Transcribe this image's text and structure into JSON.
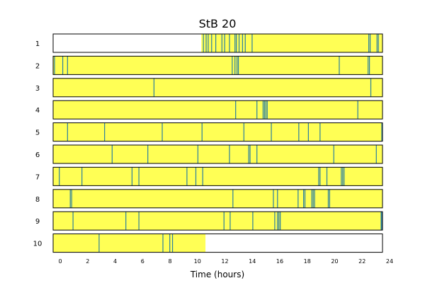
{
  "chart_data": {
    "type": "raster",
    "title": "StB 20",
    "xlabel": "Time (hours)",
    "xlim": [
      0,
      24
    ],
    "x_ticks": [
      0,
      2,
      4,
      6,
      8,
      10,
      12,
      14,
      16,
      18,
      20,
      22,
      24
    ],
    "colors": {
      "fill": "#ffff55",
      "event": "#2a7fa0",
      "frame": "#000000"
    },
    "rows": [
      {
        "label": "1",
        "active": [
          10.8,
          24
        ],
        "events": [
          10.95,
          11.15,
          11.3,
          11.55,
          11.85,
          12.3,
          12.5,
          12.85,
          13.25,
          13.35,
          13.55,
          13.8,
          14.0,
          14.5,
          23.0,
          23.1,
          23.6,
          23.7
        ]
      },
      {
        "label": "2",
        "active": [
          0,
          24
        ],
        "events": [
          0.1,
          0.7,
          1.05,
          13.05,
          13.25,
          13.4,
          13.5,
          20.85,
          22.95,
          23.05
        ]
      },
      {
        "label": "3",
        "active": [
          0,
          24
        ],
        "events": [
          7.35,
          23.15
        ]
      },
      {
        "label": "4",
        "active": [
          0,
          24
        ],
        "events": [
          13.3,
          14.85,
          15.3,
          15.4,
          15.5,
          15.6,
          22.2
        ]
      },
      {
        "label": "5",
        "active": [
          0,
          24
        ],
        "events": [
          1.05,
          3.75,
          7.95,
          10.85,
          13.9,
          15.9,
          17.9,
          18.6,
          19.45,
          23.95
        ]
      },
      {
        "label": "6",
        "active": [
          0,
          24
        ],
        "events": [
          4.3,
          6.9,
          10.55,
          12.85,
          14.25,
          14.35,
          14.85,
          20.45,
          23.55
        ]
      },
      {
        "label": "7",
        "active": [
          0,
          24
        ],
        "events": [
          0.45,
          2.1,
          5.75,
          6.25,
          9.75,
          10.4,
          10.9,
          19.35,
          19.45,
          19.95,
          21.0,
          21.1,
          21.2
        ]
      },
      {
        "label": "8",
        "active": [
          0,
          24
        ],
        "events": [
          1.25,
          1.35,
          13.1,
          16.05,
          16.35,
          17.85,
          18.25,
          18.35,
          18.85,
          18.95,
          19.05,
          20.05,
          20.15
        ]
      },
      {
        "label": "9",
        "active": [
          0,
          24
        ],
        "events": [
          1.45,
          5.3,
          6.25,
          12.45,
          12.9,
          14.55,
          16.15,
          16.35,
          16.45,
          16.55,
          23.9,
          23.95
        ]
      },
      {
        "label": "10",
        "active": [
          0,
          11.1
        ],
        "events": [
          3.35,
          8.0,
          8.5,
          8.7
        ]
      }
    ]
  }
}
